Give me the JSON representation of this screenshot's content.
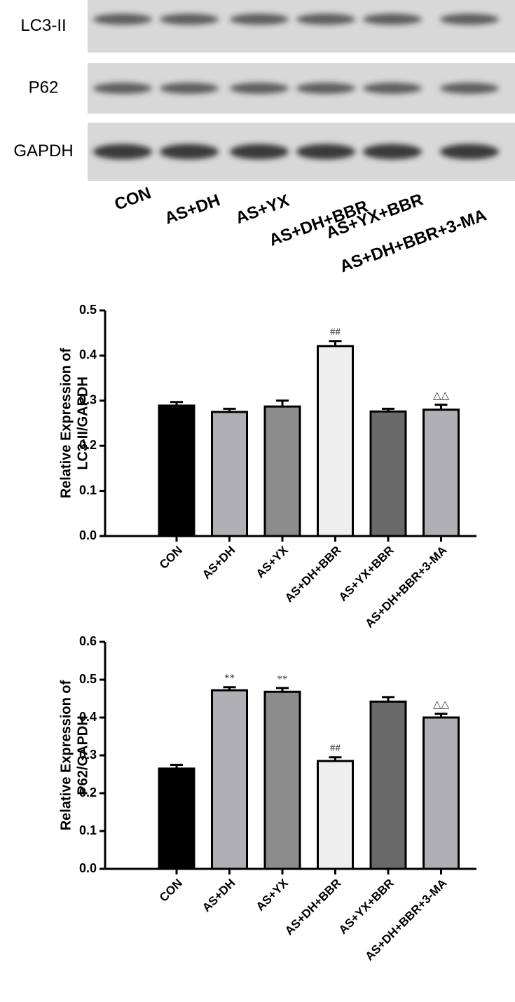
{
  "blot": {
    "rows": [
      "LC3-II",
      "P62",
      "GAPDH"
    ],
    "lanes": [
      "CON",
      "AS+DH",
      "AS+YX",
      "AS+DH+BBR",
      "AS+YX+BBR",
      "AS+DH+BBR+3-MA"
    ]
  },
  "chart_data": [
    {
      "type": "bar",
      "ylabel": [
        "Relative Expression of",
        "LC3-II/GAPDH"
      ],
      "categories": [
        "CON",
        "AS+DH",
        "AS+YX",
        "AS+DH+BBR",
        "AS+YX+BBR",
        "AS+DH+BBR+3-MA"
      ],
      "values": [
        0.289,
        0.275,
        0.287,
        0.421,
        0.276,
        0.28
      ],
      "errors": [
        0.008,
        0.007,
        0.013,
        0.011,
        0.006,
        0.011
      ],
      "annotations": [
        null,
        null,
        null,
        "##",
        null,
        "△△"
      ],
      "colors": [
        "#000000",
        "#b0b0b4",
        "#8c8c8c",
        "#eeeeee",
        "#6a6a6a",
        "#b0b0b4"
      ],
      "ylim": [
        0,
        0.5
      ],
      "yticks": [
        {
          "value": 0,
          "label": "0.0"
        },
        0.1,
        0.2,
        0.3,
        0.4,
        0.5
      ]
    },
    {
      "type": "bar",
      "ylabel": [
        "Relative Expression of",
        "P62/GAPDH"
      ],
      "categories": [
        "CON",
        "AS+DH",
        "AS+YX",
        "AS+DH+BBR",
        "AS+YX+BBR",
        "AS+DH+BBR+3-MA"
      ],
      "values": [
        0.265,
        0.472,
        0.468,
        0.285,
        0.442,
        0.4
      ],
      "errors": [
        0.01,
        0.008,
        0.01,
        0.01,
        0.012,
        0.01
      ],
      "annotations": [
        null,
        "**",
        "**",
        "##",
        null,
        "△△"
      ],
      "colors": [
        "#000000",
        "#b0b0b4",
        "#8c8c8c",
        "#eeeeee",
        "#6a6a6a",
        "#b0b0b4"
      ],
      "ylim": [
        0,
        0.6
      ],
      "yticks": [
        {
          "value": 0,
          "label": "0.0"
        },
        0.1,
        0.2,
        0.3,
        0.4,
        0.5,
        0.6
      ]
    }
  ]
}
